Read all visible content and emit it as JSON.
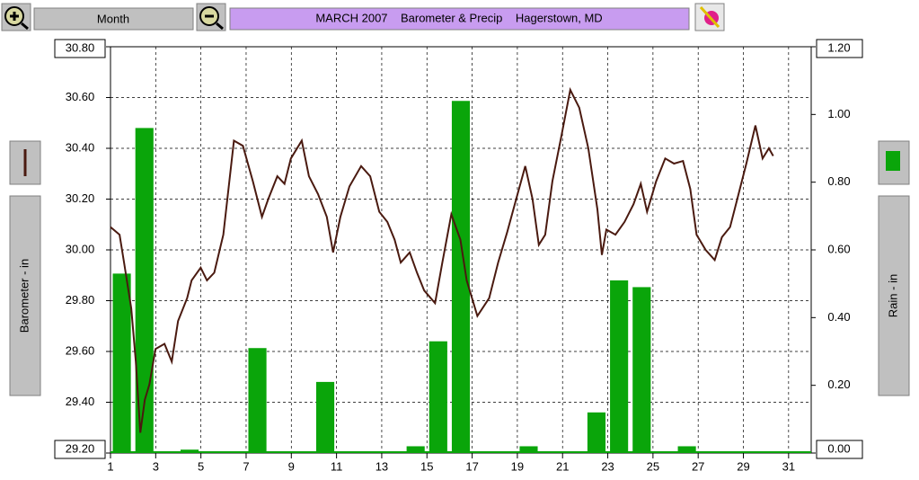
{
  "ui": {
    "period": "Month"
  },
  "chart_data": {
    "type": "combo",
    "title": "MARCH 2007    Barometer & Precip    Hagerstown, MD",
    "xlim": [
      1,
      32
    ],
    "xticks": [
      1,
      3,
      5,
      7,
      9,
      11,
      13,
      15,
      17,
      19,
      21,
      23,
      25,
      27,
      29,
      31
    ],
    "ylim": [
      29.2,
      30.8
    ],
    "yticks": [
      {
        "value": 29.2,
        "label": "29.20"
      },
      {
        "value": 29.4,
        "label": "29.40"
      },
      {
        "value": 29.6,
        "label": "29.60"
      },
      {
        "value": 29.8,
        "label": "29.80"
      },
      {
        "value": 30.0,
        "label": "30.00"
      },
      {
        "value": 30.2,
        "label": "30.20"
      },
      {
        "value": 30.4,
        "label": "30.40"
      },
      {
        "value": 30.6,
        "label": "30.60"
      },
      {
        "value": 30.8,
        "label": "30.80"
      }
    ],
    "y2lim": [
      0,
      1.2
    ],
    "y2ticks": [
      {
        "value": 0,
        "label": "0.00"
      },
      {
        "value": 0.2,
        "label": "0.20"
      },
      {
        "value": 0.4,
        "label": "0.40"
      },
      {
        "value": 0.6,
        "label": "0.60"
      },
      {
        "value": 0.8,
        "label": "0.80"
      },
      {
        "value": 1.0,
        "label": "1.00"
      },
      {
        "value": 1.2,
        "label": "1.20"
      }
    ],
    "grid": true,
    "series": [
      {
        "name": "Barometer - in",
        "type": "line",
        "color": "#4a1a10",
        "x": [
          1.0,
          1.4,
          1.6,
          1.92,
          2.12,
          2.32,
          2.52,
          2.72,
          2.99,
          3.39,
          3.71,
          3.99,
          4.39,
          4.59,
          4.99,
          5.27,
          5.59,
          5.99,
          6.46,
          6.86,
          7.3,
          7.7,
          7.98,
          8.38,
          8.7,
          8.98,
          9.46,
          9.78,
          10.18,
          10.57,
          10.85,
          11.17,
          11.57,
          12.09,
          12.49,
          12.89,
          13.25,
          13.57,
          13.84,
          14.24,
          14.56,
          14.88,
          15.36,
          15.68,
          16.08,
          16.48,
          16.76,
          17.23,
          17.75,
          18.15,
          18.55,
          18.95,
          19.35,
          19.67,
          19.95,
          20.23,
          20.55,
          20.95,
          21.34,
          21.74,
          22.14,
          22.54,
          22.74,
          22.94,
          23.34,
          23.74,
          24.14,
          24.46,
          24.74,
          25.14,
          25.54,
          25.93,
          26.33,
          26.65,
          26.93,
          27.33,
          27.73,
          28.05,
          28.41,
          28.73,
          29.13,
          29.53,
          29.85,
          30.13,
          30.32
        ],
        "values": [
          30.09,
          30.06,
          29.95,
          29.77,
          29.56,
          29.28,
          29.41,
          29.47,
          29.61,
          29.63,
          29.56,
          29.72,
          29.81,
          29.88,
          29.93,
          29.88,
          29.91,
          30.06,
          30.43,
          30.41,
          30.27,
          30.13,
          30.2,
          30.29,
          30.26,
          30.36,
          30.43,
          30.29,
          30.22,
          30.13,
          29.99,
          30.13,
          30.25,
          30.33,
          30.29,
          30.15,
          30.11,
          30.04,
          29.95,
          29.99,
          29.91,
          29.84,
          29.79,
          29.95,
          30.14,
          30.04,
          29.88,
          29.74,
          29.81,
          29.95,
          30.07,
          30.2,
          30.33,
          30.2,
          30.02,
          30.06,
          30.27,
          30.45,
          30.63,
          30.56,
          30.4,
          30.16,
          29.98,
          30.08,
          30.06,
          30.11,
          30.18,
          30.26,
          30.15,
          30.27,
          30.36,
          30.34,
          30.35,
          30.24,
          30.06,
          30.0,
          29.96,
          30.05,
          30.09,
          30.2,
          30.34,
          30.49,
          30.36,
          30.4,
          30.37
        ]
      },
      {
        "name": "Rain - in",
        "type": "bar",
        "axis": "y2",
        "color": "#0aa50a",
        "x": [
          1,
          2,
          3,
          4,
          5,
          6,
          7,
          8,
          9,
          10,
          11,
          12,
          13,
          14,
          15,
          16,
          17,
          18,
          19,
          20,
          21,
          22,
          23,
          24,
          25,
          26,
          27,
          28,
          29,
          30,
          31
        ],
        "values": [
          0.53,
          0.96,
          0,
          0.01,
          0,
          0,
          0.31,
          0,
          0,
          0.21,
          0,
          0,
          0,
          0.02,
          0.33,
          1.04,
          0,
          0,
          0.02,
          0,
          0,
          0.12,
          0.51,
          0.49,
          0,
          0.02,
          0,
          0,
          0,
          0,
          0
        ]
      }
    ]
  }
}
